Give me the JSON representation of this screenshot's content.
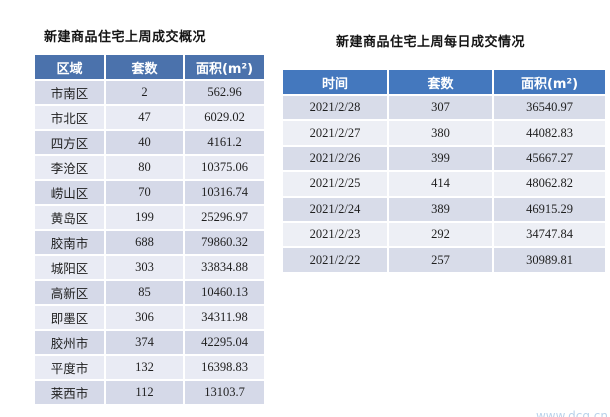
{
  "page": {
    "background": "#ffffff"
  },
  "left_table": {
    "title": "新建商品住宅上周成交概况",
    "headers": [
      "区域",
      "套数",
      "面积(m²)"
    ],
    "rows": [
      [
        "市南区",
        "2",
        "562.96"
      ],
      [
        "市北区",
        "47",
        "6029.02"
      ],
      [
        "四方区",
        "40",
        "4161.2"
      ],
      [
        "李沧区",
        "80",
        "10375.06"
      ],
      [
        "崂山区",
        "70",
        "10316.74"
      ],
      [
        "黄岛区",
        "199",
        "25296.97"
      ],
      [
        "胶南市",
        "688",
        "79860.32"
      ],
      [
        "城阳区",
        "303",
        "33834.88"
      ],
      [
        "高新区",
        "85",
        "10460.13"
      ],
      [
        "即墨区",
        "306",
        "34311.98"
      ],
      [
        "胶州市",
        "374",
        "42295.04"
      ],
      [
        "平度市",
        "132",
        "16398.83"
      ],
      [
        "莱西市",
        "112",
        "13103.7"
      ]
    ],
    "colors": {
      "header_bg": "#4b72ac",
      "header_text": "#ffffff",
      "row_odd": "#d5d9e8",
      "row_even": "#e9ebf4",
      "cell_text": "#1f1f1f"
    }
  },
  "right_table": {
    "title": "新建商品住宅上周每日成交情况",
    "headers": [
      "时间",
      "套数",
      "面积(m²)"
    ],
    "rows": [
      [
        "2021/2/28",
        "307",
        "36540.97"
      ],
      [
        "2021/2/27",
        "380",
        "44082.83"
      ],
      [
        "2021/2/26",
        "399",
        "45667.27"
      ],
      [
        "2021/2/25",
        "414",
        "48062.82"
      ],
      [
        "2021/2/24",
        "389",
        "46915.29"
      ],
      [
        "2021/2/23",
        "292",
        "34747.84"
      ],
      [
        "2021/2/22",
        "257",
        "30989.81"
      ]
    ],
    "colors": {
      "header_bg": "#4478be",
      "header_text": "#ffffff",
      "row_odd": "#d8dce9",
      "row_even": "#edeff5",
      "cell_text": "#1f1f1f"
    }
  },
  "watermark": {
    "text": "www.dcq.cn",
    "color": "#b9d2ea"
  }
}
